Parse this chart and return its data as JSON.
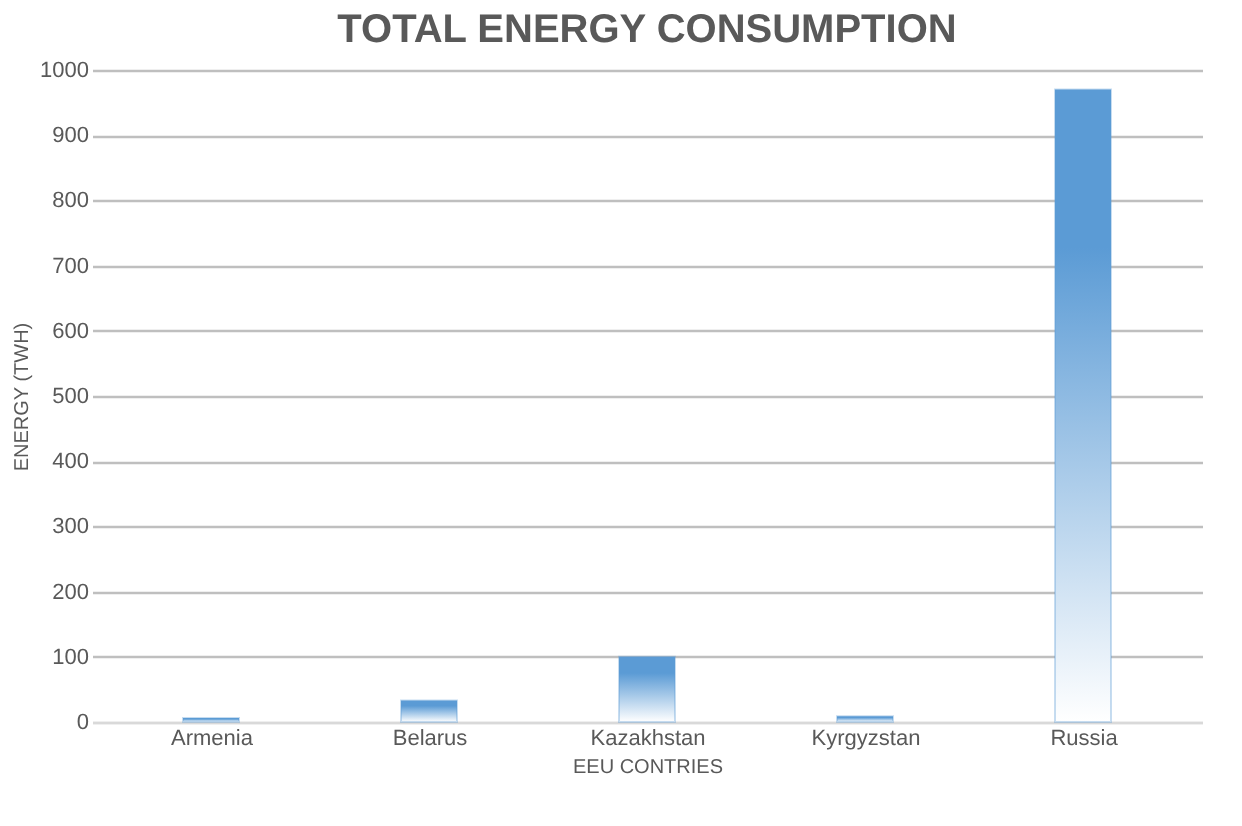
{
  "chart_data": {
    "type": "bar",
    "title": "TOTAL ENERGY CONSUMPTION",
    "xlabel": "EEU CONTRIES",
    "ylabel": "ENERGY (TWH)",
    "categories": [
      "Armenia",
      "Belarus",
      "Kazakhstan",
      "Kyrgyzstan",
      "Russia"
    ],
    "values": [
      6,
      33,
      100,
      9,
      970
    ],
    "color": "#5b9bd5",
    "ylim": [
      0,
      1000
    ],
    "yticks": [
      0,
      100,
      200,
      300,
      400,
      500,
      600,
      700,
      800,
      900,
      1000
    ],
    "grid": "y"
  }
}
